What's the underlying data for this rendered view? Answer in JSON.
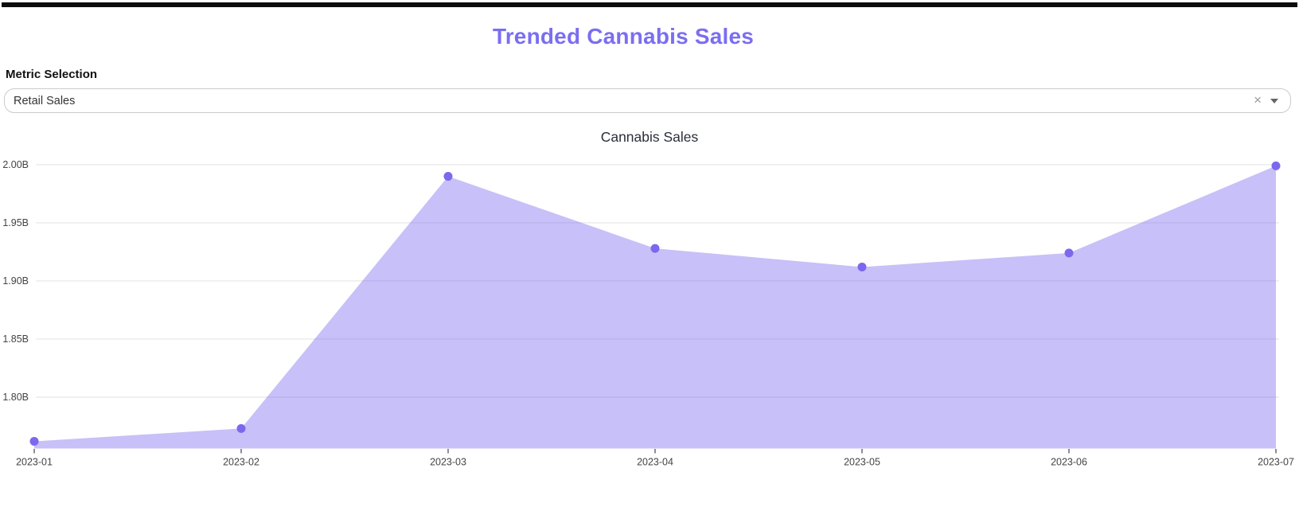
{
  "page": {
    "title": "Trended Cannabis Sales",
    "title_color": "#7b6ef0"
  },
  "metric_selector": {
    "label": "Metric Selection",
    "selected_value": "Retail Sales",
    "clear_icon": "×"
  },
  "chart_data": {
    "type": "area",
    "title": "Cannabis Sales",
    "categories": [
      "2023-01",
      "2023-02",
      "2023-03",
      "2023-04",
      "2023-05",
      "2023-06",
      "2023-07"
    ],
    "values": [
      1.762,
      1.773,
      1.99,
      1.928,
      1.912,
      1.924,
      1.999
    ],
    "unit": "B",
    "ylim": [
      1.7558,
      2.0112
    ],
    "yticks": [
      {
        "value": 2.0,
        "label": "2.00B"
      },
      {
        "value": 1.95,
        "label": "1.95B"
      },
      {
        "value": 1.9,
        "label": "1.90B"
      },
      {
        "value": 1.85,
        "label": "1.85B"
      },
      {
        "value": 1.8,
        "label": "1.80B"
      }
    ],
    "xlabel": "",
    "ylabel": "",
    "legend": "none",
    "grid": true,
    "colors": {
      "fill": "rgba(123,104,238,0.42)",
      "marker": "#7b68ee",
      "gridline": "#e5e5e5",
      "tick_text": "#444444",
      "title_text": "#2a2f3a",
      "tick_mark": "#444444"
    }
  }
}
